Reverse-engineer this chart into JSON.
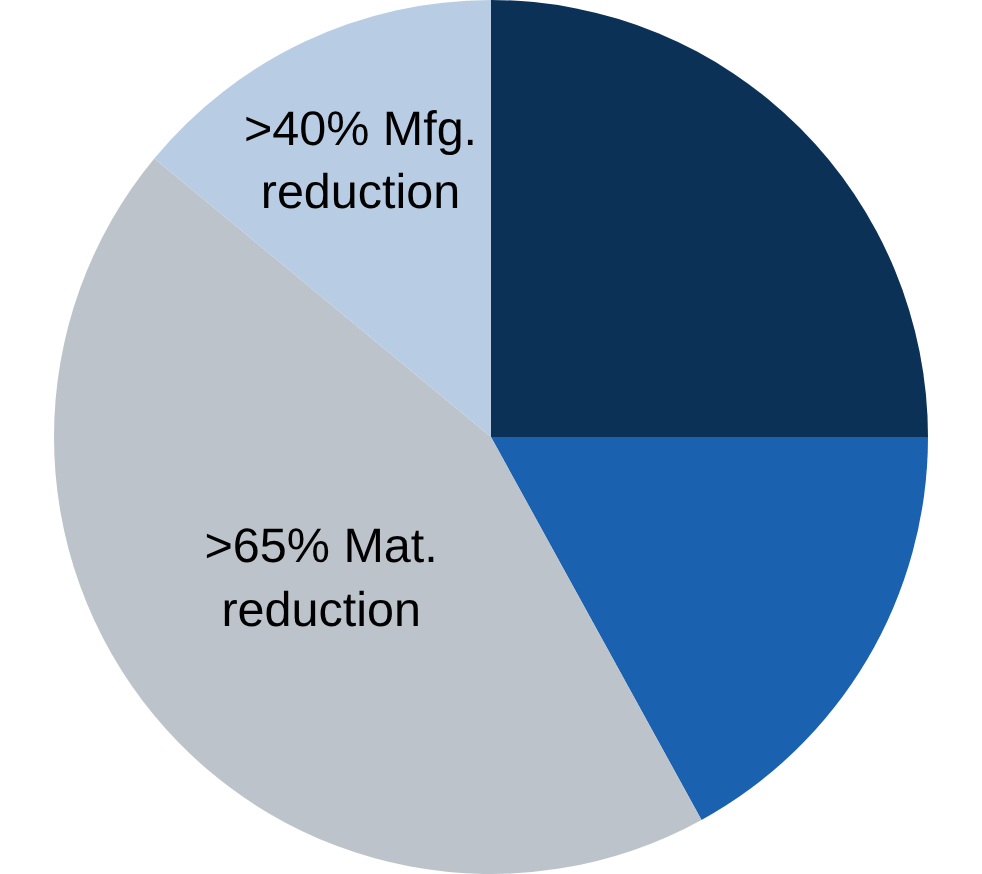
{
  "chart_data": {
    "type": "pie",
    "categories": [
      null,
      null,
      ">65% Mat.\nreduction",
      ">40% Mfg.\nreduction"
    ],
    "values": [
      25,
      17,
      44,
      14
    ],
    "colors": [
      "#0b3157",
      "#1a62b0",
      "#bcc3cb",
      "#b8cde3"
    ],
    "legend": false
  }
}
